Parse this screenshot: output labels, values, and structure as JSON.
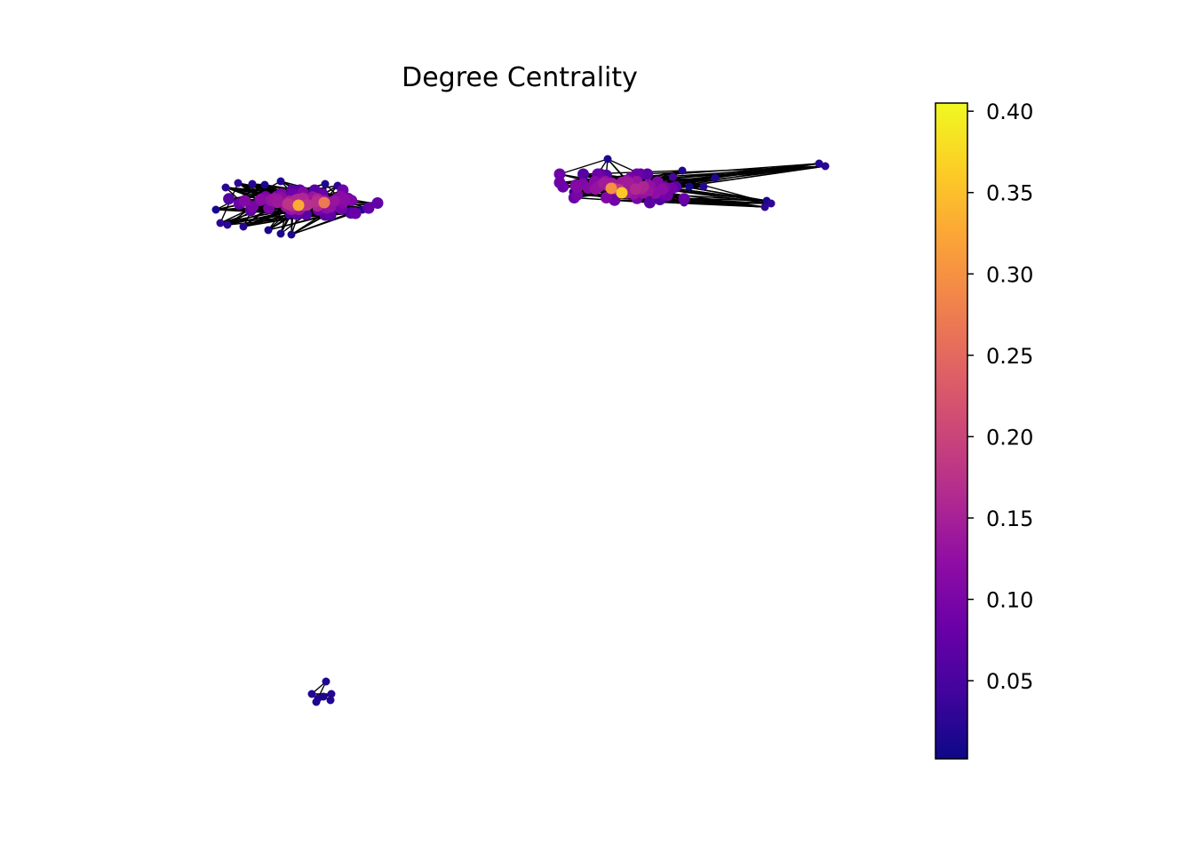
{
  "chart_data": {
    "type": "network",
    "title": "Degree Centrality",
    "colormap": "plasma",
    "colorbar": {
      "min": 0.002,
      "max": 0.405,
      "ticks": [
        0.05,
        0.1,
        0.15,
        0.2,
        0.25,
        0.3,
        0.35,
        0.4
      ],
      "tick_labels": [
        "0.05",
        "0.10",
        "0.15",
        "0.20",
        "0.25",
        "0.30",
        "0.35",
        "0.40"
      ],
      "placement": "right"
    },
    "components": [
      {
        "name": "left-cluster",
        "approx_nodes": 90,
        "max_centrality": 0.33
      },
      {
        "name": "right-cluster",
        "approx_nodes": 80,
        "max_centrality": 0.36
      },
      {
        "name": "small-cluster",
        "approx_nodes": 7,
        "max_centrality": 0.02
      }
    ],
    "edge_color": "#000000",
    "axes_visible": false
  }
}
